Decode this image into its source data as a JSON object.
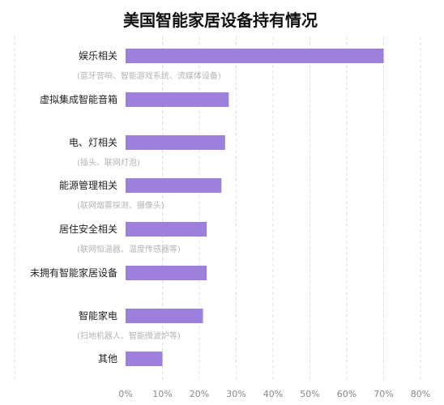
{
  "chart_data": {
    "type": "bar",
    "orientation": "horizontal",
    "title": "美国智能家居设备持有情况",
    "bar_color": "#9d7fdc",
    "grid": true,
    "xlim": [
      0,
      80
    ],
    "x_ticks": [
      "0%",
      "10%",
      "20%",
      "30%",
      "40%",
      "50%",
      "60%",
      "70%",
      "80%"
    ],
    "categories": [
      {
        "label": "娱乐相关",
        "sublabel": "(蓝牙音响、智能游戏系统、流媒体设备)"
      },
      {
        "label": "虚拟集成智能音箱",
        "sublabel": ""
      },
      {
        "label": "电、灯相关",
        "sublabel": "(插头、联网灯泡)"
      },
      {
        "label": "能源管理相关",
        "sublabel": "(联网烟雾探测、摄像头)"
      },
      {
        "label": "居住安全相关",
        "sublabel": "(联网恒温器、温度传感器等)"
      },
      {
        "label": "未拥有智能家居设备",
        "sublabel": ""
      },
      {
        "label": "智能家电",
        "sublabel": "(扫地机器人、智能微波炉等)"
      },
      {
        "label": "其他",
        "sublabel": ""
      }
    ],
    "values": [
      70,
      28,
      27,
      26,
      22,
      22,
      21,
      10
    ]
  }
}
